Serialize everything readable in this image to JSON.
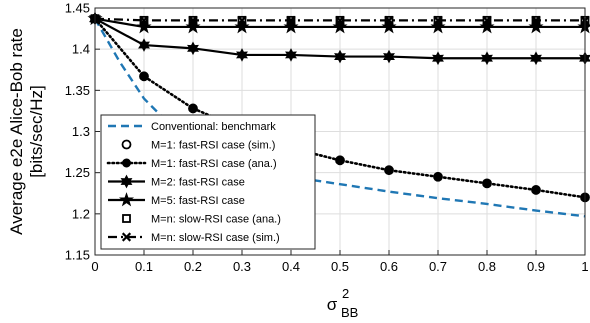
{
  "chart_data": {
    "type": "line",
    "xlabel": "σ",
    "xlabel_sup": "2",
    "xlabel_sub": "BB",
    "ylabel_lines": [
      "Average e2e Alice-Bob rate",
      "[bits/sec/Hz]"
    ],
    "xlim": [
      0,
      1
    ],
    "ylim": [
      1.15,
      1.45
    ],
    "xticks": [
      0,
      0.1,
      0.2,
      0.3,
      0.4,
      0.5,
      0.6,
      0.7,
      0.8,
      0.9,
      1
    ],
    "yticks": [
      1.15,
      1.2,
      1.25,
      1.3,
      1.35,
      1.4,
      1.45
    ],
    "xtick_labels": [
      "0",
      "0.1",
      "0.2",
      "0.3",
      "0.4",
      "0.5",
      "0.6",
      "0.7",
      "0.8",
      "0.9",
      "1"
    ],
    "ytick_labels": [
      "1.15",
      "1.2",
      "1.25",
      "1.3",
      "1.35",
      "1.4",
      "1.45"
    ],
    "grid": true,
    "legend_position": "lower-left",
    "series": [
      {
        "name": "Conventional: benchmark",
        "color": "#1f77b4",
        "line": "dashed",
        "marker": "none",
        "x": [
          0,
          0.05,
          0.1,
          0.15,
          0.2,
          0.25,
          0.3,
          0.35,
          0.4,
          0.5,
          0.6,
          0.7,
          0.8,
          0.9,
          1
        ],
        "y": [
          1.437,
          1.385,
          1.34,
          1.31,
          1.29,
          1.272,
          1.262,
          1.253,
          1.245,
          1.236,
          1.227,
          1.219,
          1.212,
          1.204,
          1.197
        ]
      },
      {
        "name": "M=1: fast-RSI case (sim.)",
        "color": "#000000",
        "line": "none",
        "marker": "circle-open",
        "x": [
          0,
          0.1,
          0.2,
          0.3,
          0.4,
          0.5,
          0.6,
          0.7,
          0.8,
          0.9,
          1
        ],
        "y": [
          1.437,
          1.367,
          1.328,
          1.303,
          1.28,
          1.265,
          1.253,
          1.245,
          1.237,
          1.229,
          1.22
        ]
      },
      {
        "name": "M=1: fast-RSI case (ana.)",
        "color": "#000000",
        "line": "dotted",
        "marker": "circle-filled",
        "x": [
          0,
          0.1,
          0.2,
          0.3,
          0.4,
          0.5,
          0.6,
          0.7,
          0.8,
          0.9,
          1
        ],
        "y": [
          1.437,
          1.367,
          1.328,
          1.303,
          1.28,
          1.265,
          1.253,
          1.245,
          1.237,
          1.229,
          1.22
        ]
      },
      {
        "name": "M=2: fast-RSI case",
        "color": "#000000",
        "line": "solid",
        "marker": "hexagram",
        "x": [
          0,
          0.1,
          0.2,
          0.3,
          0.4,
          0.5,
          0.6,
          0.7,
          0.8,
          0.9,
          1
        ],
        "y": [
          1.437,
          1.405,
          1.401,
          1.393,
          1.393,
          1.391,
          1.391,
          1.389,
          1.389,
          1.389,
          1.389
        ]
      },
      {
        "name": "M=5: fast-RSI case",
        "color": "#000000",
        "line": "solid",
        "marker": "pentagram",
        "x": [
          0,
          0.1,
          0.2,
          0.3,
          0.4,
          0.5,
          0.6,
          0.7,
          0.8,
          0.9,
          1
        ],
        "y": [
          1.437,
          1.427,
          1.427,
          1.427,
          1.427,
          1.427,
          1.427,
          1.427,
          1.427,
          1.427,
          1.427
        ]
      },
      {
        "name": "M=n: slow-RSI case (ana.)",
        "color": "#000000",
        "line": "none",
        "marker": "square-open",
        "x": [
          0,
          0.1,
          0.2,
          0.3,
          0.4,
          0.5,
          0.6,
          0.7,
          0.8,
          0.9,
          1
        ],
        "y": [
          1.437,
          1.435,
          1.435,
          1.435,
          1.435,
          1.435,
          1.435,
          1.435,
          1.435,
          1.435,
          1.435
        ]
      },
      {
        "name": "M=n: slow-RSI case (sim.)",
        "color": "#000000",
        "line": "dashdot",
        "marker": "x-cross",
        "x": [
          0,
          0.1,
          0.2,
          0.3,
          0.4,
          0.5,
          0.6,
          0.7,
          0.8,
          0.9,
          1
        ],
        "y": [
          1.437,
          1.435,
          1.435,
          1.435,
          1.435,
          1.435,
          1.435,
          1.435,
          1.435,
          1.435,
          1.435
        ]
      }
    ]
  }
}
